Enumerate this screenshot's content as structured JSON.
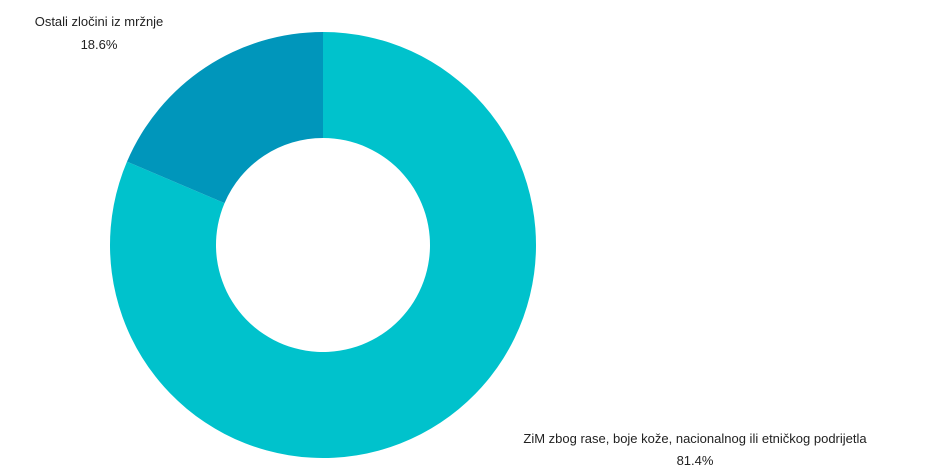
{
  "chart_data": {
    "type": "pie",
    "donut": true,
    "start_angle_deg": 0,
    "direction": "clockwise",
    "slices": [
      {
        "label": "ZiM zbog rase, boje kože, nacionalnog ili etničkog podrijetla",
        "value": 81.4,
        "value_label": "81.4%",
        "color": "#00c2cc"
      },
      {
        "label": "Ostali zločini iz mržnje",
        "value": 18.6,
        "value_label": "18.6%",
        "color": "#0096bb"
      }
    ],
    "legend": "none",
    "labels_placement": "outside"
  }
}
